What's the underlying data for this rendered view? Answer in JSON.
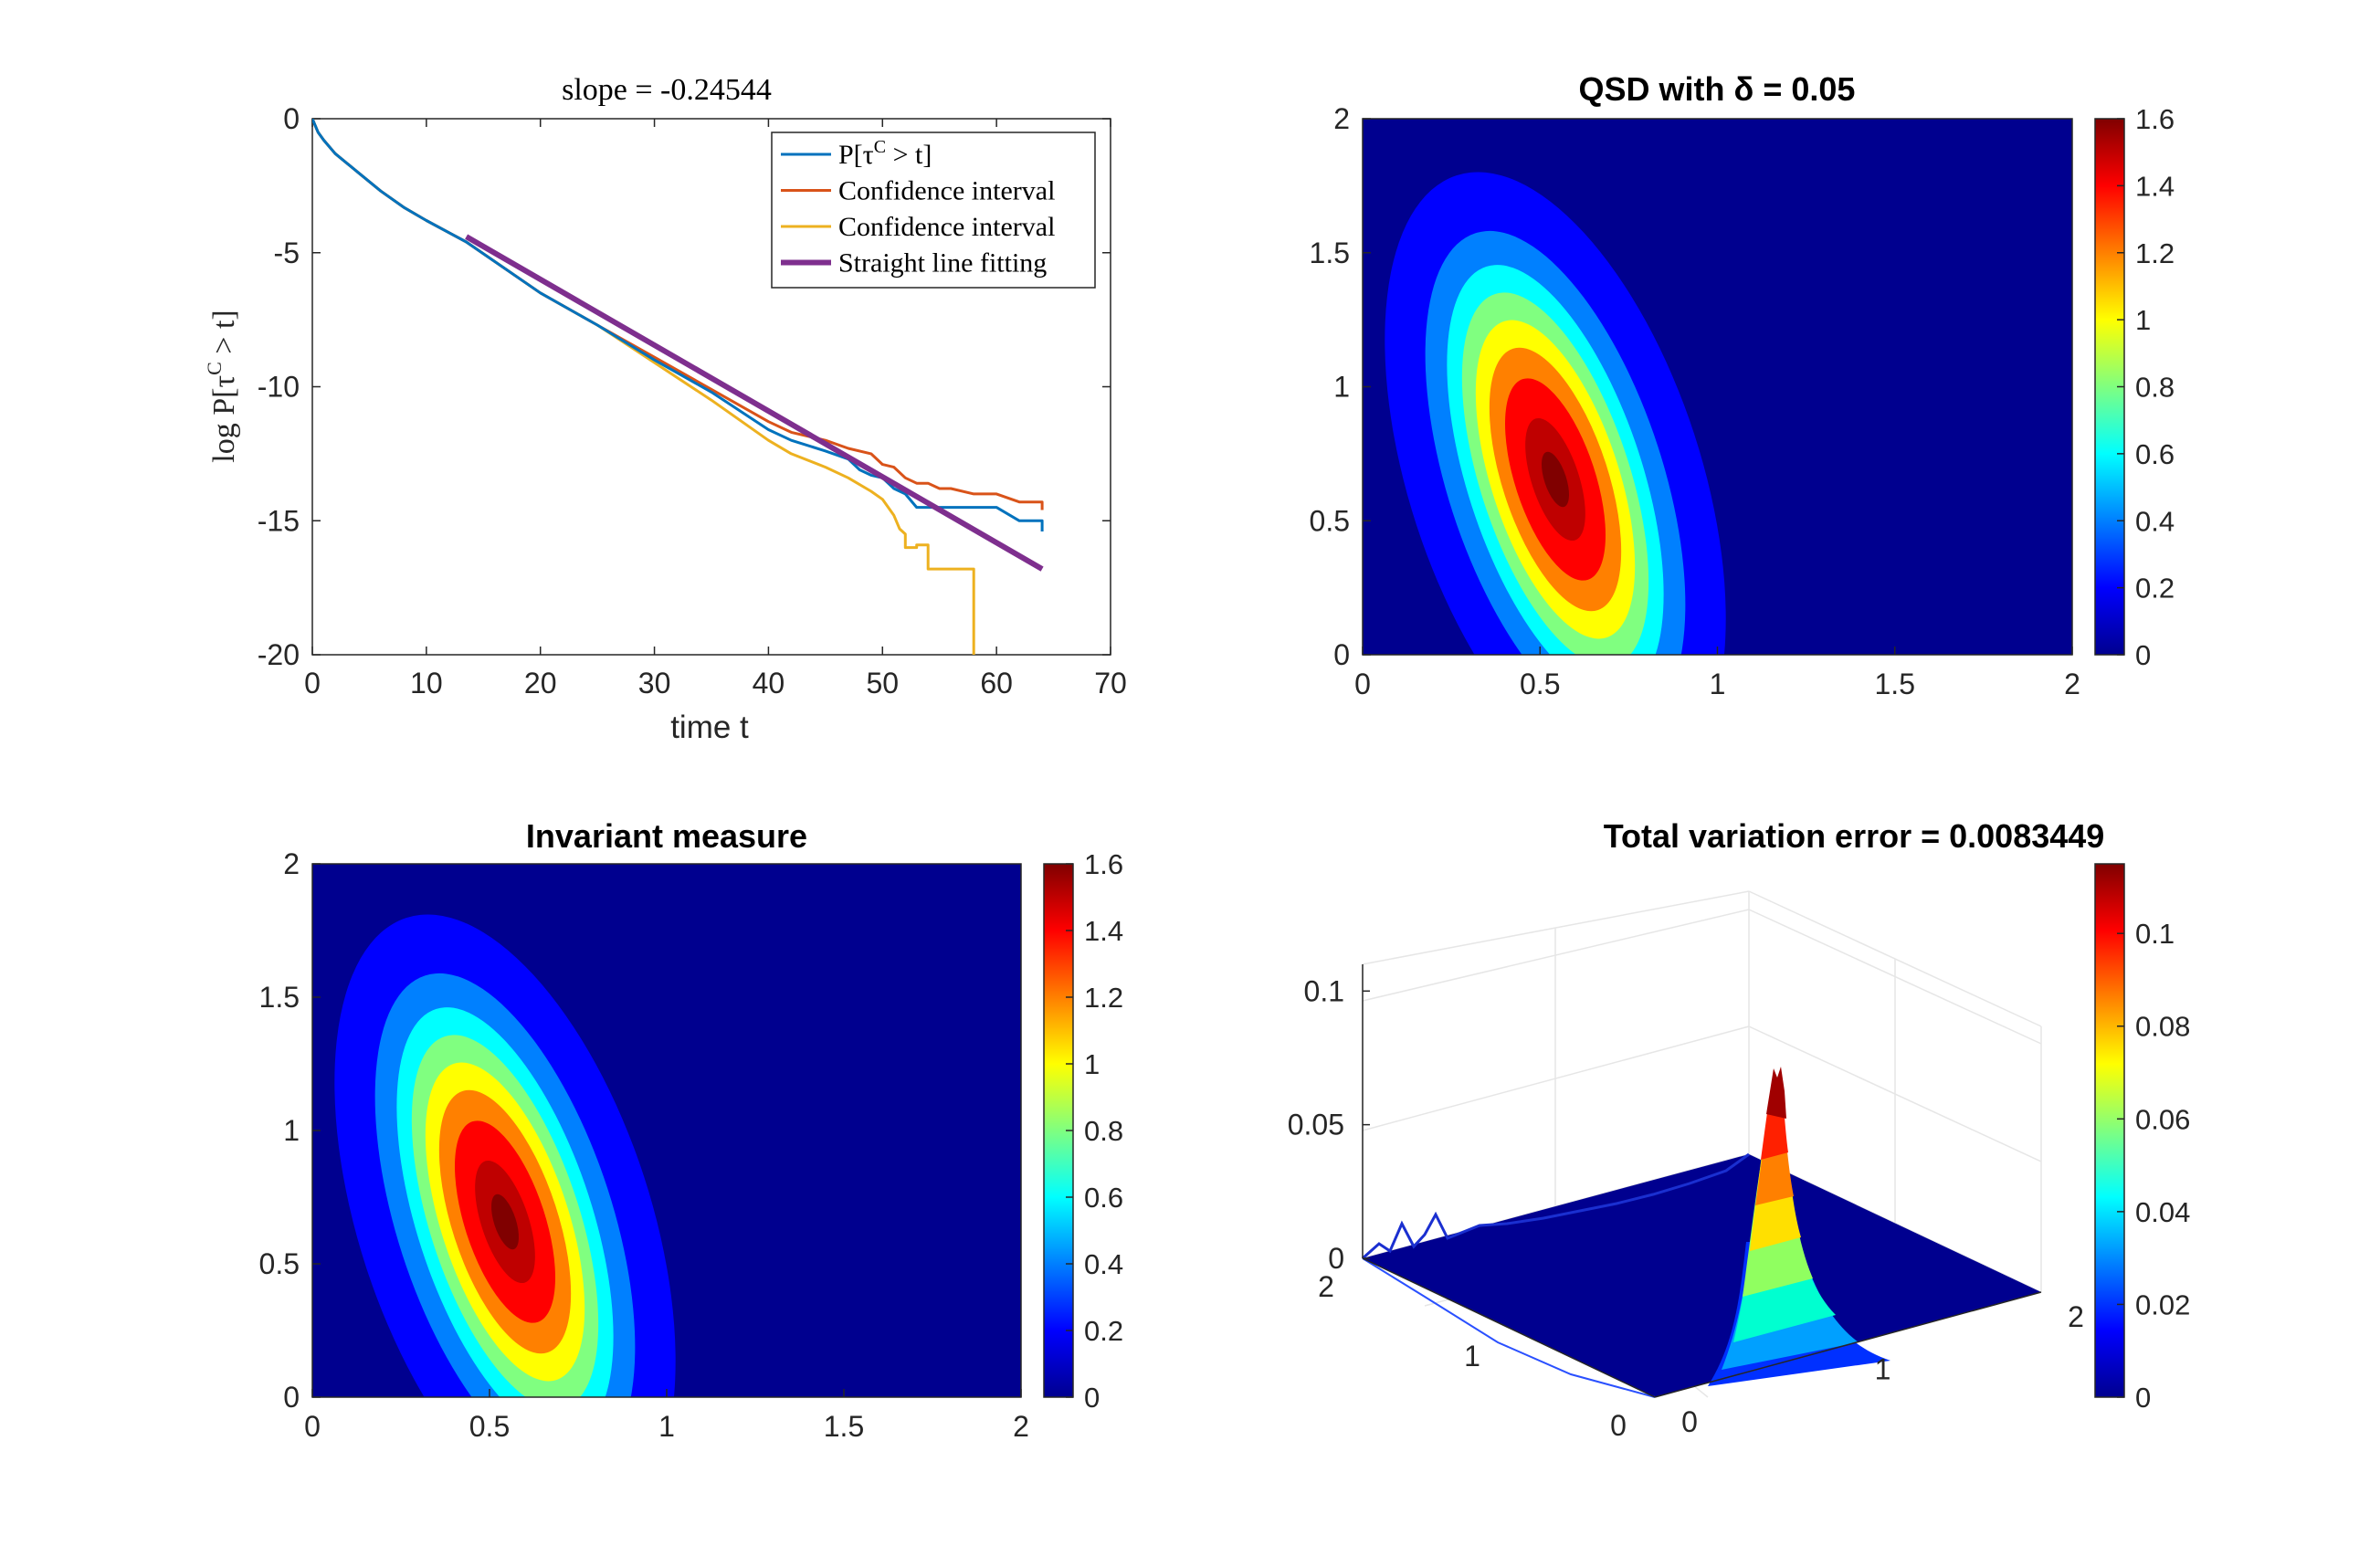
{
  "chart_data": [
    {
      "type": "line",
      "title": "slope = -0.24544",
      "xlabel": "time t",
      "ylabel": "log P[τ",
      "ylabel_sup": "C",
      "ylabel_tail": " > t]",
      "xlim": [
        0,
        70
      ],
      "ylim": [
        -20,
        0
      ],
      "xticks": [
        "0",
        "10",
        "20",
        "30",
        "40",
        "50",
        "60",
        "70"
      ],
      "yticks": [
        "0",
        "-5",
        "-10",
        "-15",
        "-20"
      ],
      "legend_position": "top-right",
      "legend": [
        {
          "name": "P[τ",
          "sup": "C",
          "tail": " > t]",
          "color": "#0072BD"
        },
        {
          "name": "Confidence interval",
          "color": "#D95319"
        },
        {
          "name": "Confidence interval",
          "color": "#EDB120"
        },
        {
          "name": "Straight line fitting",
          "color": "#7E2F8E"
        }
      ],
      "series": [
        {
          "name": "P[τ^C > t]",
          "color": "#0072BD",
          "x": [
            0,
            0.5,
            1,
            2,
            4,
            6,
            8,
            10,
            13.5,
            20,
            25,
            30,
            35,
            40,
            42,
            45,
            47,
            48,
            49,
            50,
            51,
            52,
            53,
            55,
            58,
            60,
            62,
            63,
            64,
            64
          ],
          "y": [
            0,
            -0.5,
            -0.8,
            -1.3,
            -2.0,
            -2.7,
            -3.3,
            -3.8,
            -4.6,
            -6.5,
            -7.7,
            -9.0,
            -10.2,
            -11.6,
            -12.0,
            -12.4,
            -12.7,
            -13.1,
            -13.3,
            -13.4,
            -13.8,
            -14.0,
            -14.5,
            -14.5,
            -14.5,
            -14.5,
            -15.0,
            -15.0,
            -15.0,
            -15.4
          ]
        },
        {
          "name": "Confidence interval",
          "color": "#D95319",
          "x": [
            0,
            0.5,
            1,
            2,
            4,
            6,
            8,
            10,
            13.5,
            20,
            25,
            30,
            35,
            40,
            42,
            45,
            47,
            49,
            50,
            51,
            52,
            53,
            54,
            55,
            56,
            58,
            60,
            62,
            63,
            64,
            64
          ],
          "y": [
            0,
            -0.5,
            -0.8,
            -1.3,
            -2.0,
            -2.7,
            -3.3,
            -3.8,
            -4.6,
            -6.5,
            -7.7,
            -8.9,
            -10.1,
            -11.3,
            -11.7,
            -12.0,
            -12.3,
            -12.5,
            -12.9,
            -13.0,
            -13.4,
            -13.6,
            -13.6,
            -13.8,
            -13.8,
            -14.0,
            -14.0,
            -14.3,
            -14.3,
            -14.3,
            -14.6
          ]
        },
        {
          "name": "Confidence interval",
          "color": "#EDB120",
          "x": [
            0,
            0.5,
            1,
            2,
            4,
            6,
            8,
            10,
            13.5,
            20,
            25,
            30,
            35,
            40,
            42,
            45,
            47,
            49,
            50,
            51,
            51.5,
            52,
            52,
            53,
            53,
            54,
            54,
            56,
            58,
            58,
            58,
            58
          ],
          "y": [
            0,
            -0.5,
            -0.8,
            -1.3,
            -2.0,
            -2.7,
            -3.3,
            -3.8,
            -4.6,
            -6.5,
            -7.7,
            -9.1,
            -10.5,
            -12.0,
            -12.5,
            -13.0,
            -13.4,
            -13.9,
            -14.2,
            -14.8,
            -15.3,
            -15.5,
            -16.0,
            -16.0,
            -15.9,
            -15.9,
            -16.8,
            -16.8,
            -16.8,
            -18.5,
            -19.5,
            -20
          ]
        },
        {
          "name": "Straight line fitting",
          "color": "#7E2F8E",
          "x": [
            13.5,
            64
          ],
          "y": [
            -4.4,
            -16.8
          ]
        }
      ]
    },
    {
      "type": "heatmap",
      "title": "QSD with δ = 0.05",
      "xlim": [
        0,
        2
      ],
      "ylim": [
        0,
        2
      ],
      "xticks": [
        "0",
        "0.5",
        "1",
        "1.5",
        "2"
      ],
      "yticks": [
        "0",
        "0.5",
        "1",
        "1.5",
        "2"
      ],
      "colorbar": {
        "min": 0,
        "max": 1.6,
        "ticks": [
          "0",
          "0.2",
          "0.4",
          "0.6",
          "0.8",
          "1",
          "1.2",
          "1.4",
          "1.6"
        ]
      },
      "peak": {
        "x": 0.55,
        "y": 0.6,
        "value": 1.6
      }
    },
    {
      "type": "heatmap",
      "title": "Invariant measure",
      "xlim": [
        0,
        2
      ],
      "ylim": [
        0,
        2
      ],
      "xticks": [
        "0",
        "0.5",
        "1",
        "1.5",
        "2"
      ],
      "yticks": [
        "0",
        "0.5",
        "1",
        "1.5",
        "2"
      ],
      "colorbar": {
        "min": 0,
        "max": 1.6,
        "ticks": [
          "0",
          "0.2",
          "0.4",
          "0.6",
          "0.8",
          "1",
          "1.2",
          "1.4",
          "1.6"
        ]
      },
      "peak": {
        "x": 0.55,
        "y": 0.6,
        "value": 1.6
      }
    },
    {
      "type": "surface",
      "title": "Total variation error = 0.0083449",
      "zlim": [
        0,
        0.11
      ],
      "zticks": [
        "0",
        "0.05",
        "0.1"
      ],
      "xticks": [
        "0",
        "1",
        "2"
      ],
      "yticks": [
        "0",
        "1",
        "2"
      ],
      "colorbar": {
        "min": 0,
        "max": 0.115,
        "ticks": [
          "0",
          "0.02",
          "0.04",
          "0.06",
          "0.08",
          "0.1"
        ]
      },
      "peak": {
        "x": 0.5,
        "y": 0.05,
        "value": 0.11
      }
    }
  ]
}
